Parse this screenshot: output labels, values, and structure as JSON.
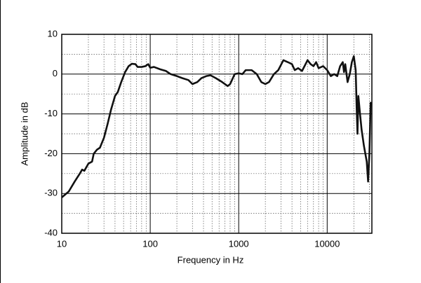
{
  "chart_data": {
    "type": "line",
    "x_label": "Frequency in Hz",
    "y_label": "Amplitude in dB",
    "log_x": true,
    "xlim": [
      10,
      32000
    ],
    "ylim": [
      -40,
      10
    ],
    "xticks": [
      10,
      100,
      1000,
      10000
    ],
    "yticks": [
      -40,
      -30,
      -20,
      -10,
      0,
      10
    ],
    "x_minor_grid": [
      20,
      30,
      40,
      50,
      60,
      70,
      80,
      90,
      200,
      300,
      400,
      500,
      600,
      700,
      800,
      900,
      2000,
      3000,
      4000,
      5000,
      6000,
      7000,
      8000,
      9000,
      20000,
      30000
    ],
    "y_minor_grid": [
      -35,
      -25,
      -15,
      -5,
      5
    ],
    "grid": true,
    "series": [
      {
        "color": "#111111",
        "x": [
          10,
          12,
          14,
          16,
          17,
          18,
          20,
          22,
          23,
          25,
          27,
          30,
          33,
          36,
          40,
          43,
          47,
          52,
          57,
          62,
          68,
          72,
          80,
          88,
          95,
          100,
          110,
          130,
          150,
          170,
          200,
          230,
          270,
          300,
          340,
          380,
          430,
          480,
          550,
          650,
          750,
          800,
          900,
          1000,
          1100,
          1200,
          1400,
          1600,
          1800,
          2000,
          2200,
          2500,
          2800,
          3200,
          3600,
          4000,
          4300,
          4700,
          5200,
          6000,
          6500,
          7000,
          7500,
          8000,
          9000,
          10000,
          11000,
          12000,
          13000,
          14000,
          15000,
          15500,
          16000,
          17000,
          18000,
          19000,
          20000,
          21000,
          21500,
          22000,
          22500,
          23500,
          24500,
          26000,
          28000,
          29000,
          30000,
          31000
        ],
        "values": [
          -31,
          -29.5,
          -27,
          -25,
          -24,
          -24.3,
          -22.5,
          -22,
          -20,
          -19,
          -18.5,
          -16,
          -12.5,
          -9,
          -5.5,
          -4.5,
          -2,
          0.5,
          2,
          2.6,
          2.5,
          1.8,
          1.8,
          2,
          2.5,
          1.6,
          1.8,
          1.2,
          0.8,
          0,
          -0.5,
          -1,
          -1.5,
          -2.5,
          -2,
          -1,
          -0.5,
          -0.3,
          -1,
          -2,
          -3,
          -2.5,
          0,
          0.2,
          0,
          1,
          1,
          0,
          -2,
          -2.5,
          -2,
          0,
          1,
          3.5,
          3,
          2.5,
          1,
          1.5,
          0.8,
          3.5,
          2.5,
          2,
          3,
          1.5,
          2,
          1,
          -0.5,
          0,
          -0.5,
          2,
          3,
          0.5,
          2.5,
          -2,
          0,
          3,
          4.5,
          1,
          -8,
          -15,
          -5.5,
          -10,
          -14,
          -18,
          -22,
          -27,
          -20,
          -7
        ]
      }
    ]
  }
}
